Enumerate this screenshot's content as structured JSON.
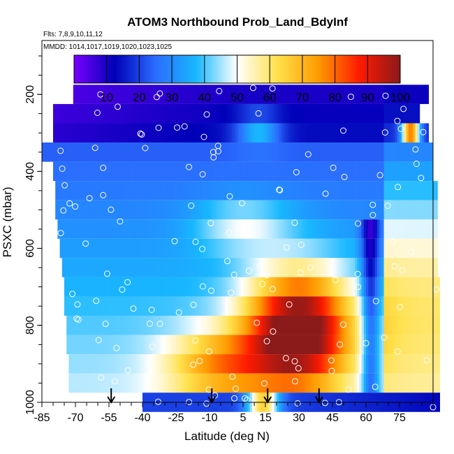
{
  "chart_data": {
    "type": "heatmap",
    "title": "ATOM3 Northbound Prob_Land_BdyInf",
    "flights_note": "Flts: 7,8,9,10,11,12",
    "dates_note": "MMDD: 1014,1017,1019,1020,1023,1025",
    "xlabel": "Latitude (deg N)",
    "ylabel": "PSXC (mbar)",
    "xlim": [
      -85,
      90
    ],
    "ylim": [
      1000,
      60
    ],
    "x_ticks": [
      "-85",
      "-70",
      "-55",
      "-40",
      "-25",
      "-10",
      "5",
      "15",
      "30",
      "45",
      "60",
      "75"
    ],
    "y_ticks": [
      "200",
      "400",
      "600",
      "800",
      "1000"
    ],
    "colorbar": {
      "range": [
        0,
        100
      ],
      "ticks": [
        "10",
        "20",
        "30",
        "40",
        "50",
        "60",
        "70",
        "80",
        "90",
        "100"
      ],
      "colors": [
        "#7a00ff",
        "#0000b8",
        "#2b6cff",
        "#18b8ff",
        "#ffffff",
        "#ffe04a",
        "#ff9a00",
        "#ff1a00",
        "#8b1a1a"
      ]
    },
    "pressure_levels": [
      200,
      250,
      300,
      350,
      400,
      450,
      500,
      550,
      600,
      650,
      700,
      750,
      800,
      850,
      900,
      950,
      1000
    ],
    "latitude_ranges": [
      [
        -71,
        88
      ],
      [
        -80,
        84
      ],
      [
        -80,
        88
      ],
      [
        -85,
        90
      ],
      [
        -80,
        90
      ],
      [
        -79,
        92
      ],
      [
        -79,
        92
      ],
      [
        -78,
        92
      ],
      [
        -77,
        92
      ],
      [
        -76,
        92
      ],
      [
        -75,
        93
      ],
      [
        -75,
        93
      ],
      [
        -74,
        93
      ],
      [
        -74,
        93
      ],
      [
        -73,
        93
      ],
      [
        -73,
        93
      ],
      [
        -40,
        93
      ]
    ],
    "field_description": [
      "low values (<15) in upper troposphere at southern latitudes",
      "high values (70-100) near 650-950 mbar between 5 and 60 deg N",
      "near-surface band low except near 10-20 deg N"
    ],
    "arrows_at_latitude": [
      -54,
      -9,
      16,
      39
    ]
  }
}
